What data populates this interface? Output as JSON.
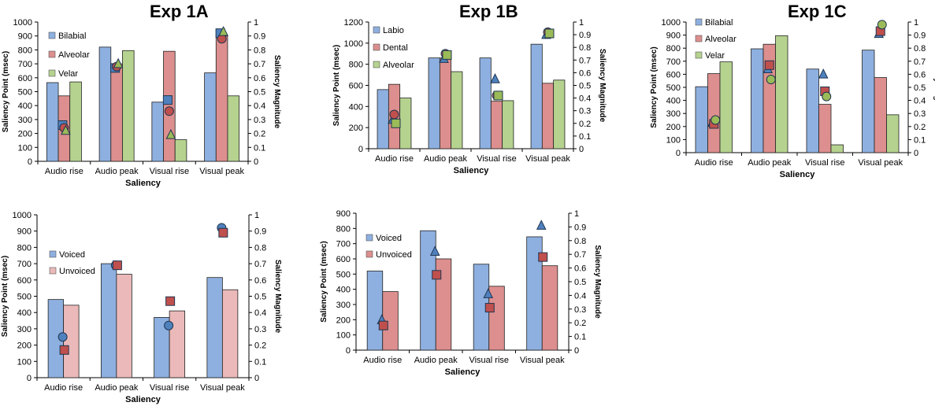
{
  "panel_titles": [
    "Exp 1A",
    "Exp 1B",
    "Exp 1C"
  ],
  "colors": {
    "blue_bar": "#8eb0e0",
    "red_bar": "#dc8f8e",
    "green_bar": "#b5d28f",
    "pink_bar": "#ebb9b9",
    "blue_marker": "#4f81bd",
    "red_marker": "#c0504d",
    "green_marker": "#9bbb59"
  },
  "chart_data": [
    {
      "type": "bar",
      "title": "Exp 1A",
      "xlabel": "Saliency",
      "ylabel": "Saliency Point (msec)",
      "y2label": "Saliency Magnitude",
      "categories": [
        "Audio rise",
        "Audio peak",
        "Visual rise",
        "Visual peak"
      ],
      "ylim": [
        0,
        1000
      ],
      "yticks": [
        "0",
        "100",
        "200",
        "300",
        "400",
        "500",
        "600",
        "700",
        "800",
        "900",
        "1000"
      ],
      "y2lim": [
        0,
        1
      ],
      "y2ticks": [
        "0",
        "0.1",
        "0.2",
        "0.3",
        "0.4",
        "0.5",
        "0.6",
        "0.7",
        "0.8",
        "0.9",
        "1"
      ],
      "legend": [
        "Bilabial",
        "Alveolar",
        "Velar"
      ],
      "series": [
        {
          "name": "Bilabial",
          "values": [
            565,
            820,
            425,
            635
          ],
          "magnitude": [
            0.26,
            0.67,
            0.44,
            0.92
          ],
          "marker": "square",
          "bar_color": "blue_bar",
          "marker_color": "blue_marker"
        },
        {
          "name": "Alveolar",
          "values": [
            470,
            700,
            790,
            900
          ],
          "magnitude": [
            0.24,
            0.68,
            0.36,
            0.88
          ],
          "marker": "circle",
          "bar_color": "red_bar",
          "marker_color": "red_marker"
        },
        {
          "name": "Velar",
          "values": [
            570,
            795,
            155,
            470
          ],
          "magnitude": [
            0.22,
            0.7,
            0.19,
            0.93
          ],
          "marker": "triangle",
          "bar_color": "green_bar",
          "marker_color": "green_marker"
        }
      ]
    },
    {
      "type": "bar",
      "title": "Exp 1B",
      "xlabel": "Saliency",
      "ylabel": "Saliency Point (msec)",
      "y2label": "Saliency Magnitude",
      "categories": [
        "Audio rise",
        "Audio peak",
        "Visual rise",
        "Visual peak"
      ],
      "ylim": [
        0,
        1200
      ],
      "yticks": [
        "0",
        "200",
        "400",
        "600",
        "800",
        "1000",
        "1200"
      ],
      "y2lim": [
        0,
        1
      ],
      "y2ticks": [
        "0",
        "0.1",
        "0.2",
        "0.3",
        "0.4",
        "0.5",
        "0.6",
        "0.7",
        "0.8",
        "0.9",
        "1"
      ],
      "legend": [
        "Labio",
        "Dental",
        "Alveolar"
      ],
      "series": [
        {
          "name": "Labio",
          "values": [
            560,
            860,
            860,
            990
          ],
          "magnitude": [
            0.23,
            0.71,
            0.55,
            0.9
          ],
          "marker": "triangle",
          "bar_color": "blue_bar",
          "marker_color": "blue_marker"
        },
        {
          "name": "Dental",
          "values": [
            610,
            860,
            450,
            620
          ],
          "magnitude": [
            0.27,
            0.75,
            0.42,
            0.92
          ],
          "marker": "circle",
          "bar_color": "red_bar",
          "marker_color": "red_marker"
        },
        {
          "name": "Alveolar",
          "values": [
            480,
            730,
            455,
            650
          ],
          "magnitude": [
            0.2,
            0.74,
            0.42,
            0.91
          ],
          "marker": "square",
          "bar_color": "green_bar",
          "marker_color": "green_marker"
        }
      ]
    },
    {
      "type": "bar",
      "title": "Exp 1C",
      "xlabel": "Saliency",
      "ylabel": "Saliency Point (msec)",
      "y2label": "Saliency Magnitude",
      "categories": [
        "Audio rise",
        "Audio peak",
        "Visual rise",
        "Visual peak"
      ],
      "ylim": [
        0,
        1000
      ],
      "yticks": [
        "0",
        "100",
        "200",
        "300",
        "400",
        "500",
        "600",
        "700",
        "800",
        "900",
        "1000"
      ],
      "y2lim": [
        0,
        1
      ],
      "y2ticks": [
        "0",
        "0.1",
        "0.2",
        "0.3",
        "0.4",
        "0.5",
        "0.6",
        "0.7",
        "0.8",
        "0.9",
        "1"
      ],
      "legend": [
        "Bilabial",
        "Alveolar",
        "Velar"
      ],
      "series": [
        {
          "name": "Bilabial",
          "values": [
            505,
            795,
            640,
            785
          ],
          "magnitude": [
            0.23,
            0.64,
            0.6,
            0.91
          ],
          "marker": "triangle",
          "bar_color": "blue_bar",
          "marker_color": "blue_marker"
        },
        {
          "name": "Alveolar",
          "values": [
            605,
            830,
            370,
            575
          ],
          "magnitude": [
            0.22,
            0.67,
            0.47,
            0.93
          ],
          "marker": "square",
          "bar_color": "red_bar",
          "marker_color": "red_marker"
        },
        {
          "name": "Velar",
          "values": [
            695,
            895,
            60,
            290
          ],
          "magnitude": [
            0.25,
            0.56,
            0.43,
            0.98
          ],
          "marker": "circle",
          "bar_color": "green_bar",
          "marker_color": "green_marker"
        }
      ]
    },
    {
      "type": "bar",
      "title": "",
      "xlabel": "Saliency",
      "ylabel": "Saliency Point (msec)",
      "y2label": "Saliency Magnitude",
      "categories": [
        "Audio rise",
        "Audio peak",
        "Visual rise",
        "Visual peak"
      ],
      "ylim": [
        0,
        1000
      ],
      "yticks": [
        "0",
        "100",
        "200",
        "300",
        "400",
        "500",
        "600",
        "700",
        "800",
        "900",
        "1000"
      ],
      "y2lim": [
        0,
        1
      ],
      "y2ticks": [
        "0",
        "0.1",
        "0.2",
        "0.3",
        "0.4",
        "0.5",
        "0.6",
        "0.7",
        "0.8",
        "0.9",
        "1"
      ],
      "legend": [
        "Voiced",
        "Unvoiced"
      ],
      "series": [
        {
          "name": "Voiced",
          "values": [
            480,
            700,
            370,
            615
          ],
          "magnitude": [
            0.25,
            0.69,
            0.32,
            0.92
          ],
          "marker": "circle",
          "bar_color": "blue_bar",
          "marker_color": "blue_marker"
        },
        {
          "name": "Unvoiced",
          "values": [
            445,
            635,
            410,
            540
          ],
          "magnitude": [
            0.17,
            0.69,
            0.47,
            0.89
          ],
          "marker": "square",
          "bar_color": "pink_bar",
          "marker_color": "red_marker"
        }
      ]
    },
    {
      "type": "bar",
      "title": "",
      "xlabel": "Saliency",
      "ylabel": "Saliency Point (msec)",
      "y2label": "Saliency Magnitude",
      "categories": [
        "Audio rise",
        "Audio peak",
        "Visual rise",
        "Visual peak"
      ],
      "ylim": [
        0,
        900
      ],
      "yticks": [
        "0",
        "100",
        "200",
        "300",
        "400",
        "500",
        "600",
        "700",
        "800",
        "900"
      ],
      "y2lim": [
        0,
        1
      ],
      "y2ticks": [
        "0",
        "0.1",
        "0.2",
        "0.3",
        "0.4",
        "0.5",
        "0.6",
        "0.7",
        "0.8",
        "0.9",
        "1"
      ],
      "legend": [
        "Voiced",
        "Unvoiced"
      ],
      "series": [
        {
          "name": "Voiced",
          "values": [
            520,
            785,
            565,
            745
          ],
          "magnitude": [
            0.22,
            0.72,
            0.41,
            0.91
          ],
          "marker": "triangle",
          "bar_color": "blue_bar",
          "marker_color": "blue_marker"
        },
        {
          "name": "Unvoiced",
          "values": [
            385,
            600,
            420,
            555
          ],
          "magnitude": [
            0.18,
            0.55,
            0.31,
            0.68
          ],
          "marker": "square",
          "bar_color": "red_bar",
          "marker_color": "red_marker"
        }
      ]
    }
  ]
}
